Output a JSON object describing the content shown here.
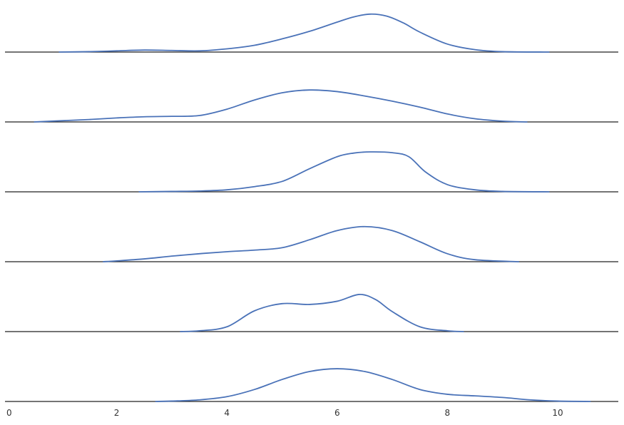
{
  "chart_data": {
    "type": "line",
    "subtype": "ridgeline-density",
    "title": "",
    "xlabel": "",
    "ylabel": "",
    "xlim": [
      0,
      11.1
    ],
    "x_ticks": [
      0,
      2,
      4,
      6,
      8,
      10
    ],
    "x_tick_labels": [
      "0",
      "2",
      "4",
      "6",
      "8",
      "10"
    ],
    "grid": false,
    "legend": "none",
    "line_color": "#4a72b8",
    "baseline_color": "#222222",
    "series": [
      {
        "x": [
          0.95,
          1.5,
          2.0,
          2.5,
          3.0,
          3.5,
          4.0,
          4.5,
          5.0,
          5.5,
          6.0,
          6.3,
          6.6,
          6.9,
          7.2,
          7.5,
          8.0,
          8.5,
          9.0,
          9.85
        ],
        "y": [
          0.0,
          0.01,
          0.03,
          0.05,
          0.04,
          0.03,
          0.08,
          0.17,
          0.33,
          0.52,
          0.75,
          0.88,
          0.95,
          0.9,
          0.73,
          0.5,
          0.2,
          0.06,
          0.01,
          0.0
        ]
      },
      {
        "x": [
          0.5,
          1.0,
          1.5,
          2.0,
          2.5,
          3.0,
          3.5,
          4.0,
          4.5,
          5.0,
          5.5,
          6.0,
          6.5,
          7.0,
          7.5,
          8.0,
          8.5,
          9.0,
          9.45
        ],
        "y": [
          0.0,
          0.03,
          0.06,
          0.1,
          0.13,
          0.14,
          0.16,
          0.32,
          0.55,
          0.73,
          0.8,
          0.76,
          0.65,
          0.52,
          0.37,
          0.2,
          0.08,
          0.02,
          0.0
        ]
      },
      {
        "x": [
          2.4,
          3.0,
          3.5,
          4.0,
          4.5,
          5.0,
          5.5,
          6.0,
          6.3,
          6.6,
          7.0,
          7.3,
          7.6,
          8.0,
          8.5,
          9.0,
          9.85
        ],
        "y": [
          0.0,
          0.01,
          0.02,
          0.05,
          0.13,
          0.26,
          0.58,
          0.88,
          0.97,
          1.0,
          0.98,
          0.88,
          0.5,
          0.18,
          0.05,
          0.01,
          0.0
        ]
      },
      {
        "x": [
          1.75,
          2.0,
          2.5,
          3.0,
          3.5,
          4.0,
          4.5,
          5.0,
          5.5,
          6.0,
          6.5,
          7.0,
          7.5,
          8.0,
          8.5,
          9.3
        ],
        "y": [
          0.0,
          0.02,
          0.07,
          0.14,
          0.2,
          0.25,
          0.29,
          0.35,
          0.55,
          0.78,
          0.88,
          0.78,
          0.5,
          0.2,
          0.05,
          0.0
        ]
      },
      {
        "x": [
          3.15,
          3.5,
          4.0,
          4.5,
          5.0,
          5.5,
          6.0,
          6.4,
          6.7,
          7.0,
          7.5,
          8.0,
          8.3
        ],
        "y": [
          0.0,
          0.02,
          0.12,
          0.52,
          0.7,
          0.68,
          0.76,
          0.93,
          0.8,
          0.5,
          0.12,
          0.02,
          0.0
        ]
      },
      {
        "x": [
          2.7,
          3.0,
          3.5,
          4.0,
          4.5,
          5.0,
          5.5,
          6.0,
          6.5,
          7.0,
          7.5,
          8.0,
          8.5,
          9.0,
          9.5,
          10.0,
          10.6
        ],
        "y": [
          0.0,
          0.01,
          0.04,
          0.12,
          0.3,
          0.55,
          0.75,
          0.82,
          0.75,
          0.55,
          0.3,
          0.18,
          0.14,
          0.1,
          0.04,
          0.01,
          0.0
        ]
      }
    ]
  }
}
